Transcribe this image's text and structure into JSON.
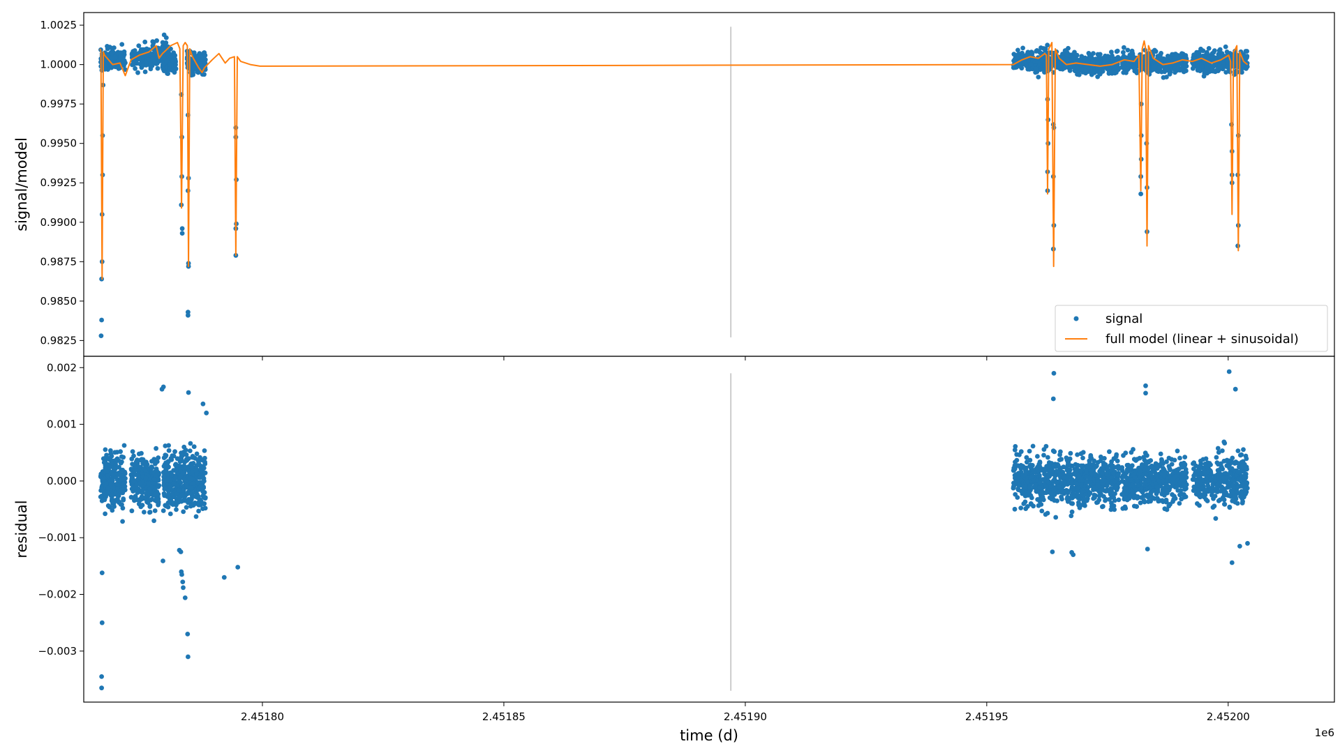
{
  "chart_data": [
    {
      "type": "scatter",
      "panel": "top",
      "ylabel": "signal/model",
      "xlim": [
        2451763.0,
        2452022.0
      ],
      "ylim": [
        0.9815,
        1.0033
      ],
      "yticks": [
        0.9825,
        0.985,
        0.9875,
        0.99,
        0.9925,
        0.995,
        0.9975,
        1.0,
        1.0025
      ],
      "ytick_labels": [
        "0.9825",
        "0.9850",
        "0.9875",
        "0.9900",
        "0.9925",
        "0.9950",
        "0.9975",
        "1.0000",
        "1.0025"
      ],
      "grid": false,
      "legend_position": "lower-right",
      "vertical_line": {
        "x": 2451897.0,
        "y_range": [
          0.9827,
          1.0024
        ],
        "color": "#cccccc"
      },
      "series": [
        {
          "name": "signal",
          "type": "scatter",
          "color": "#1f77b4",
          "segments": [
            {
              "x0": 2451766.5,
              "x1": 2451771.6,
              "mean": 1.0003,
              "spread": 0.0006,
              "n": 150
            },
            {
              "x0": 2451772.8,
              "x1": 2451778.6,
              "mean": 1.0005,
              "spread": 0.0007,
              "n": 160
            },
            {
              "x0": 2451779.0,
              "x1": 2451780.2,
              "mean": 1.0008,
              "spread": 0.0007,
              "n": 40
            },
            {
              "x0": 2451779.3,
              "x1": 2451782.1,
              "mean": 1.0001,
              "spread": 0.0006,
              "n": 120
            },
            {
              "x0": 2451784.4,
              "x1": 2451788.2,
              "mean": 1.0002,
              "spread": 0.0006,
              "n": 130
            },
            {
              "x0": 2451955.5,
              "x1": 2451967.8,
              "mean": 1.0002,
              "spread": 0.0006,
              "n": 360
            },
            {
              "x0": 2451968.0,
              "x1": 2451977.4,
              "mean": 1.0,
              "spread": 0.0006,
              "n": 280
            },
            {
              "x0": 2451978.0,
              "x1": 2451991.4,
              "mean": 1.0001,
              "spread": 0.0006,
              "n": 380
            },
            {
              "x0": 2451992.6,
              "x1": 2452004.0,
              "mean": 1.0002,
              "spread": 0.0006,
              "n": 320
            }
          ],
          "transit_points": [
            [
              2451766.6,
              0.9828
            ],
            [
              2451766.7,
              0.9838
            ],
            [
              2451766.7,
              0.9864
            ],
            [
              2451766.8,
              0.9875
            ],
            [
              2451766.8,
              0.9905
            ],
            [
              2451766.9,
              0.993
            ],
            [
              2451766.9,
              0.9955
            ],
            [
              2451767.0,
              0.9987
            ],
            [
              2451783.2,
              0.9911
            ],
            [
              2451783.3,
              0.9929
            ],
            [
              2451783.3,
              0.9954
            ],
            [
              2451783.2,
              0.9981
            ],
            [
              2451783.4,
              0.9896
            ],
            [
              2451783.4,
              0.9893
            ],
            [
              2451784.6,
              0.9843
            ],
            [
              2451784.6,
              0.9841
            ],
            [
              2451784.7,
              0.9872
            ],
            [
              2451784.7,
              0.9874
            ],
            [
              2451784.6,
              0.992
            ],
            [
              2451784.7,
              0.9928
            ],
            [
              2451784.6,
              0.9968
            ],
            [
              2451794.5,
              0.9879
            ],
            [
              2451794.5,
              0.9896
            ],
            [
              2451794.6,
              0.9899
            ],
            [
              2451794.6,
              0.9927
            ],
            [
              2451794.5,
              0.9954
            ],
            [
              2451794.5,
              0.996
            ],
            [
              2451962.6,
              0.992
            ],
            [
              2451962.6,
              0.9932
            ],
            [
              2451962.7,
              0.995
            ],
            [
              2451962.7,
              0.9965
            ],
            [
              2451962.6,
              0.9978
            ],
            [
              2451963.8,
              0.9883
            ],
            [
              2451963.9,
              0.9898
            ],
            [
              2451963.8,
              0.9929
            ],
            [
              2451963.9,
              0.996
            ],
            [
              2451963.8,
              0.9962
            ],
            [
              2451981.9,
              0.9918
            ],
            [
              2451981.9,
              0.9929
            ],
            [
              2451982.0,
              0.994
            ],
            [
              2451982.0,
              0.9955
            ],
            [
              2451982.0,
              0.9975
            ],
            [
              2451983.2,
              0.9894
            ],
            [
              2451983.2,
              0.9922
            ],
            [
              2451983.1,
              0.995
            ],
            [
              2452000.8,
              0.9925
            ],
            [
              2452000.8,
              0.993
            ],
            [
              2452000.8,
              0.9945
            ],
            [
              2452000.7,
              0.9962
            ],
            [
              2452002.0,
              0.9885
            ],
            [
              2452002.1,
              0.9898
            ],
            [
              2452002.0,
              0.993
            ],
            [
              2452002.1,
              0.9955
            ]
          ]
        },
        {
          "name": "full model (linear + sinusoidal)",
          "type": "line",
          "color": "#ff7f0e",
          "line_x": [
            2451766.4,
            2451766.55,
            2451766.8,
            2451767.05,
            2451767.3,
            2451769.0,
            2451770.5,
            2451771.6,
            2451772.8,
            2451774.5,
            2451776.5,
            2451778.0,
            2451778.6,
            2451779.3,
            2451780.0,
            2451781.0,
            2451782.4,
            2451782.9,
            2451783.25,
            2451783.6,
            2451784.0,
            2451784.45,
            2451784.7,
            2451784.95,
            2451785.5,
            2451786.8,
            2451787.5,
            2451788.0,
            2451789.6,
            2451791.0,
            2451792.3,
            2451793.2,
            2451794.2,
            2451794.5,
            2451794.8,
            2451795.5,
            2451797.5,
            2451799.5,
            2451801.5,
            2451955.5,
            2451957.3,
            2451959.0,
            2451960.7,
            2451962.0,
            2451962.35,
            2451962.6,
            2451962.85,
            2451963.2,
            2451963.5,
            2451963.85,
            2451964.2,
            2451965.0,
            2451966.5,
            2451968.5,
            2451971.0,
            2451973.5,
            2451976.0,
            2451978.5,
            2451980.5,
            2451981.5,
            2451981.9,
            2451982.2,
            2451982.6,
            2451982.9,
            2451983.2,
            2451983.5,
            2451984.5,
            2451986.5,
            2451988.5,
            2451990.5,
            2451992.6,
            2451994.5,
            2451996.5,
            2451998.5,
            2452000.1,
            2452000.5,
            2452000.8,
            2452001.1,
            2452001.5,
            2452001.8,
            2452002.1,
            2452002.4,
            2452003.2,
            2452004.0
          ],
          "line_y": [
            1.001,
            1.0008,
            0.9864,
            1.0008,
            1.0006,
            1.0,
            1.0001,
            0.9993,
            1.0003,
            1.0006,
            1.0008,
            1.0012,
            1.0004,
            1.0007,
            1.0009,
            1.0012,
            1.0014,
            1.001,
            0.9909,
            1.0012,
            1.0014,
            1.0012,
            0.9872,
            1.001,
            1.0005,
            0.9998,
            0.9995,
            0.9998,
            1.0003,
            1.0007,
            1.0001,
            1.0004,
            1.0005,
            0.9879,
            1.0005,
            1.0002,
            1.0,
            0.9999,
            0.9999,
            1.0,
            1.0003,
            1.0005,
            1.0004,
            1.0007,
            1.0006,
            0.9918,
            1.001,
            1.0012,
            1.0014,
            0.9872,
            1.001,
            1.0004,
            1.0,
            1.0001,
            1.0,
            0.9999,
            1.0,
            1.0003,
            1.0002,
            1.0006,
            0.992,
            1.001,
            1.0015,
            1.001,
            0.9885,
            1.0012,
            1.0004,
            1.0,
            1.0001,
            1.0003,
            1.0002,
            1.0004,
            1.0001,
            1.0003,
            1.0006,
            1.0002,
            0.9905,
            1.0008,
            1.001,
            1.0012,
            0.9882,
            1.0008,
            1.0002,
            1.0
          ]
        }
      ]
    },
    {
      "type": "scatter",
      "panel": "bottom",
      "xlabel": "time (d)",
      "ylabel": "residual",
      "x_offset_label": "1e6",
      "xlim": [
        2451763.0,
        2452022.0
      ],
      "ylim": [
        -0.0039,
        0.0022
      ],
      "xticks": [
        2451800,
        2451850,
        2451900,
        2451950,
        2452000
      ],
      "xtick_labels": [
        "2.45180",
        "2.45185",
        "2.45190",
        "2.45195",
        "2.45200"
      ],
      "yticks": [
        -0.003,
        -0.002,
        -0.001,
        0.0,
        0.001,
        0.002
      ],
      "ytick_labels": [
        "−0.003",
        "−0.002",
        "−0.001",
        "0.000",
        "0.001",
        "0.002"
      ],
      "grid": false,
      "vertical_line": {
        "x": 2451897.0,
        "y_range": [
          -0.0037,
          0.0019
        ],
        "color": "#cccccc"
      },
      "series": [
        {
          "name": "signal",
          "type": "scatter",
          "color": "#1f77b4",
          "segments": [
            {
              "x0": 2451766.5,
              "x1": 2451771.6,
              "mean": 0.0,
              "spread": 0.00042,
              "n": 260
            },
            {
              "x0": 2451772.8,
              "x1": 2451778.6,
              "mean": 0.0,
              "spread": 0.00042,
              "n": 280
            },
            {
              "x0": 2451779.5,
              "x1": 2451788.2,
              "mean": 0.0,
              "spread": 0.00042,
              "n": 420
            },
            {
              "x0": 2451955.5,
              "x1": 2451967.8,
              "mean": 0.0,
              "spread": 0.0004,
              "n": 420
            },
            {
              "x0": 2451968.0,
              "x1": 2451977.4,
              "mean": 0.0,
              "spread": 0.00038,
              "n": 340
            },
            {
              "x0": 2451978.0,
              "x1": 2451991.4,
              "mean": 0.0,
              "spread": 0.00038,
              "n": 440
            },
            {
              "x0": 2451992.6,
              "x1": 2452004.0,
              "mean": 0.0,
              "spread": 0.0004,
              "n": 360
            }
          ],
          "outlier_points": [
            [
              2451766.7,
              -0.00365
            ],
            [
              2451766.7,
              -0.00345
            ],
            [
              2451766.8,
              -0.0025
            ],
            [
              2451766.8,
              -0.00162
            ],
            [
              2451783.2,
              -0.0016
            ],
            [
              2451783.3,
              -0.00165
            ],
            [
              2451783.5,
              -0.00178
            ],
            [
              2451783.6,
              -0.00188
            ],
            [
              2451784.0,
              -0.00206
            ],
            [
              2451784.5,
              -0.0027
            ],
            [
              2451784.6,
              -0.0031
            ],
            [
              2451784.7,
              0.00156
            ],
            [
              2451779.2,
              0.00162
            ],
            [
              2451779.5,
              0.00166
            ],
            [
              2451779.4,
              -0.00141
            ],
            [
              2451783.1,
              -0.00125
            ],
            [
              2451788.4,
              0.0012
            ],
            [
              2451787.7,
              0.00136
            ],
            [
              2451792.1,
              -0.0017
            ],
            [
              2451794.9,
              -0.00152
            ],
            [
              2451782.8,
              -0.00122
            ],
            [
              2451963.9,
              0.0019
            ],
            [
              2451963.8,
              0.00145
            ],
            [
              2451963.6,
              -0.00125
            ],
            [
              2451967.9,
              -0.0013
            ],
            [
              2451967.6,
              -0.00126
            ],
            [
              2451982.9,
              0.00168
            ],
            [
              2451982.9,
              0.00155
            ],
            [
              2451983.3,
              -0.0012
            ],
            [
              2452000.2,
              0.00193
            ],
            [
              2452001.5,
              0.00162
            ],
            [
              2452000.8,
              -0.00144
            ],
            [
              2452004.0,
              -0.0011
            ],
            [
              2452002.4,
              -0.00115
            ]
          ]
        }
      ]
    }
  ]
}
